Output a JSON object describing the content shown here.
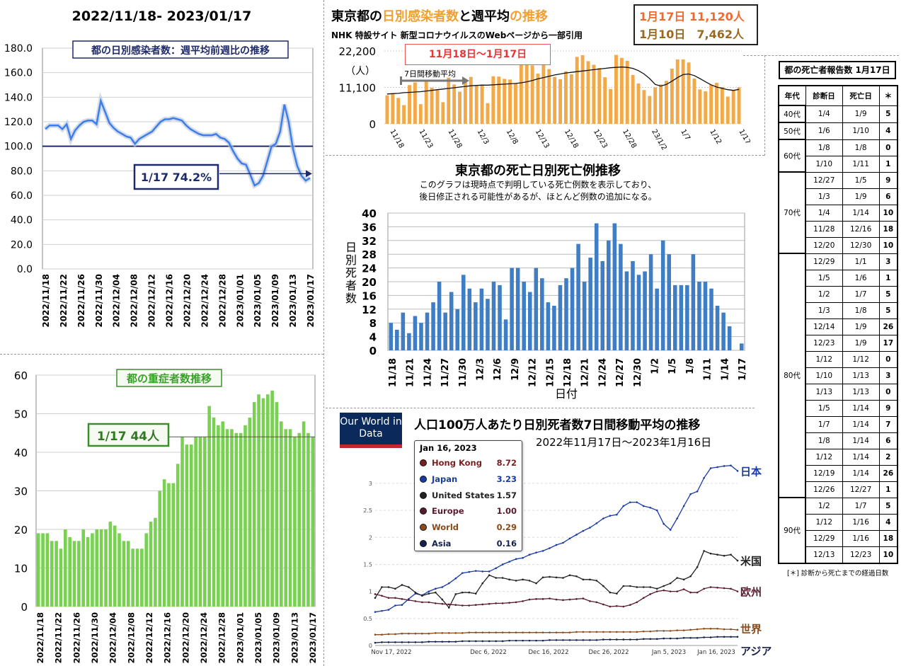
{
  "chart_data": [
    {
      "id": "ratio",
      "type": "line",
      "title": "2022/11/18- 2023/01/17",
      "subtitle": "都の日別感染者数：週平均前週比の推移",
      "annotation": "1/17 74.2%",
      "ylim": [
        0,
        180
      ],
      "yticks": [
        "0.0",
        "20.0",
        "40.0",
        "60.0",
        "80.0",
        "100.0",
        "120.0",
        "140.0",
        "160.0",
        "180.0"
      ],
      "reference_line": 100,
      "x_labels": [
        "2022/11/18",
        "2022/11/22",
        "2022/11/26",
        "2022/11/30",
        "2022/12/04",
        "2022/12/08",
        "2022/12/12",
        "2022/12/16",
        "2022/12/20",
        "2022/12/24",
        "2022/12/28",
        "2023/01/01",
        "2023/01/05",
        "2023/01/09",
        "2023/01/13",
        "2023/01/17"
      ],
      "series": [
        {
          "values": [
            114,
            117,
            117,
            117,
            114,
            118,
            106,
            113,
            117,
            120,
            121,
            121,
            118,
            137,
            128,
            119,
            115,
            112,
            110,
            108,
            107,
            102,
            106,
            108,
            110,
            112,
            116,
            120,
            122,
            122,
            123,
            122,
            121,
            117,
            114,
            112,
            110,
            109,
            109,
            109,
            110,
            107,
            106,
            103,
            96,
            90,
            86,
            85,
            77,
            68,
            70,
            76,
            88,
            100,
            102,
            112,
            134,
            120,
            98,
            84,
            76,
            72,
            74.2
          ]
        }
      ]
    },
    {
      "id": "daily",
      "type": "bar",
      "title": "東京都の日別感染者数と週平均の推移",
      "source": "NHK 特設サイト 新型コロナウイルスのWebページから一部引用",
      "period": "11月18日〜1月17日",
      "ma_label": "7日間移動平均",
      "ylabel": "（人）",
      "ylim": [
        0,
        22200
      ],
      "yticks": [
        "0",
        "11,100",
        "22,200"
      ],
      "callout": {
        "line1": "1月17日 11,120人",
        "line2": "1月10日　7,462人"
      },
      "x_labels": [
        "11/18",
        "11/23",
        "11/28",
        "12/3",
        "12/8",
        "12/13",
        "12/18",
        "12/23",
        "12/28",
        "23/1/2",
        "1/7",
        "1/12",
        "1/17"
      ],
      "bars": [
        8700,
        9300,
        7900,
        5700,
        11800,
        12600,
        6000,
        13400,
        11000,
        10300,
        6600,
        14100,
        12000,
        9800,
        13600,
        14300,
        11600,
        12000,
        6300,
        14500,
        14400,
        13700,
        13500,
        12300,
        18000,
        18800,
        17800,
        15300,
        18000,
        16700,
        14300,
        13600,
        16000,
        15100,
        20400,
        20900,
        19100,
        18000,
        17000,
        14200,
        10600,
        21000,
        20100,
        19200,
        14900,
        12300,
        10300,
        8500,
        11100,
        12000,
        13100,
        16800,
        19600,
        19600,
        18700,
        13800,
        10500,
        9900,
        11900,
        12500,
        11200,
        8300,
        10300,
        11120
      ],
      "ma": [
        9100,
        9200,
        9300,
        9500,
        9600,
        9700,
        9800,
        10000,
        10200,
        10400,
        10600,
        10800,
        11000,
        11200,
        11400,
        11600,
        11700,
        11800,
        11800,
        11900,
        12000,
        12100,
        12200,
        12300,
        12500,
        12800,
        13200,
        13700,
        14100,
        14500,
        14900,
        15200,
        15500,
        15700,
        15900,
        16100,
        16300,
        16500,
        16700,
        16900,
        17100,
        17200,
        17300,
        17200,
        16900,
        16200,
        15200,
        13800,
        12000,
        11500,
        12000,
        13000,
        14100,
        15000,
        15200,
        14700,
        13800,
        12800,
        11900,
        11200,
        10800,
        10400,
        10200,
        10500
      ]
    },
    {
      "id": "deaths",
      "type": "bar",
      "title": "東京都の死亡日別死亡例推移",
      "note": "このグラフは現時点で判明している死亡例数を表示しており、\n後日修正される可能性があるが、ほとんど例数の追加になる。",
      "ylabel": "日別死者数",
      "xlabel": "日付",
      "ylim": [
        0,
        40
      ],
      "yticks": [
        0,
        4,
        8,
        12,
        16,
        20,
        24,
        28,
        32,
        36,
        40
      ],
      "x_labels": [
        "11/18",
        "11/21",
        "11/24",
        "11/27",
        "11/30",
        "12/3",
        "12/6",
        "12/9",
        "12/12",
        "12/15",
        "12/18",
        "12/21",
        "12/24",
        "12/27",
        "12/30",
        "1/2",
        "1/5",
        "1/8",
        "1/11",
        "1/14",
        "1/17"
      ],
      "values": [
        8,
        6,
        11,
        5,
        10,
        8,
        11,
        14,
        20,
        11,
        17,
        12,
        22,
        18,
        14,
        18,
        15,
        20,
        19,
        9,
        24,
        24,
        20,
        17,
        24,
        21,
        14,
        13,
        19,
        21,
        24,
        31,
        20,
        27,
        37,
        26,
        32,
        37,
        31,
        23,
        26,
        22,
        23,
        28,
        18,
        32,
        28,
        19,
        19,
        19,
        28,
        20,
        20,
        18,
        13,
        11,
        7,
        0,
        2
      ]
    },
    {
      "id": "severe",
      "type": "bar",
      "title": "都の重症者数推移",
      "annotation": "1/17  44人",
      "ylim": [
        0,
        60
      ],
      "yticks": [
        0,
        10,
        20,
        30,
        40,
        50,
        60
      ],
      "x_labels": [
        "2022/11/18",
        "2022/11/22",
        "2022/11/26",
        "2022/11/30",
        "2022/12/04",
        "2022/12/08",
        "2022/12/12",
        "2022/12/16",
        "2022/12/20",
        "2022/12/24",
        "2022/12/28",
        "2023/01/01",
        "2023/01/05",
        "2023/01/09",
        "2023/01/13",
        "2023/01/17"
      ],
      "values": [
        19,
        19,
        19,
        17,
        17,
        15,
        20,
        18,
        17,
        17,
        20,
        18,
        19,
        20,
        20,
        20,
        22,
        21,
        19,
        17,
        17,
        15,
        15,
        15,
        19,
        22,
        23,
        30,
        33,
        32,
        32,
        37,
        44,
        42,
        42,
        44,
        44,
        44,
        52,
        49,
        47,
        48,
        46,
        46,
        45,
        45,
        47,
        49,
        53,
        55,
        54,
        55,
        56,
        53,
        48,
        46,
        46,
        44,
        45,
        48,
        45,
        44
      ]
    },
    {
      "id": "owid",
      "type": "line",
      "brand": "Our World in Data",
      "title": "人口100万人あたり日別死者数7日間移動平均の推移",
      "subtitle": "2022年11月17日〜2023年1月16日",
      "ylim": [
        0,
        3.3
      ],
      "yticks": [
        "0",
        "0.5",
        "1",
        "1.5",
        "2",
        "2.5",
        "3"
      ],
      "x_labels": [
        "Nov 17, 2022",
        "Dec 6, 2022",
        "Dec 16, 2022",
        "Dec 26, 2022",
        "Jan 5, 2023",
        "Jan 16, 2023"
      ],
      "tooltip_date": "Jan 16, 2023",
      "legend": [
        {
          "name": "Hong Kong",
          "value": "8.72",
          "color": "#7a1f1f"
        },
        {
          "name": "Japan",
          "value": "3.23",
          "color": "#1a3aa8"
        },
        {
          "name": "United States",
          "value": "1.57",
          "color": "#222222"
        },
        {
          "name": "Europe",
          "value": "1.00",
          "color": "#5a1a2e"
        },
        {
          "name": "World",
          "value": "0.29",
          "color": "#8a4a1a"
        },
        {
          "name": "Asia",
          "value": "0.16",
          "color": "#14214d"
        }
      ],
      "series": [
        {
          "name": "日本",
          "color": "#1a3aa8",
          "values": [
            0.62,
            0.64,
            0.66,
            0.74,
            0.75,
            0.86,
            0.96,
            0.93,
            1.0,
            1.05,
            1.08,
            1.15,
            1.24,
            1.34,
            1.36,
            1.38,
            1.37,
            1.37,
            1.43,
            1.5,
            1.55,
            1.6,
            1.62,
            1.68,
            1.72,
            1.75,
            1.8,
            1.86,
            1.9,
            1.98,
            2.05,
            2.12,
            2.18,
            2.26,
            2.35,
            2.4,
            2.42,
            2.58,
            2.65,
            2.65,
            2.58,
            2.55,
            2.5,
            2.25,
            2.14,
            2.35,
            2.58,
            2.8,
            2.85,
            3.1,
            3.28,
            3.3,
            3.32,
            3.33,
            3.23
          ]
        },
        {
          "name": "米国",
          "color": "#222222",
          "values": [
            0.88,
            1.08,
            1.08,
            1.05,
            1.12,
            1.08,
            0.98,
            0.92,
            0.96,
            0.98,
            0.85,
            0.7,
            0.95,
            0.98,
            0.98,
            0.96,
            1.15,
            1.3,
            1.25,
            1.25,
            1.22,
            1.2,
            1.22,
            1.2,
            1.15,
            1.26,
            1.27,
            1.26,
            1.25,
            1.3,
            1.28,
            1.22,
            1.22,
            1.2,
            1.1,
            0.98,
            0.96,
            1.1,
            1.1,
            1.08,
            1.08,
            1.08,
            1.05,
            1.1,
            1.15,
            1.25,
            1.22,
            1.28,
            1.45,
            1.75,
            1.7,
            1.68,
            1.66,
            1.68,
            1.57
          ]
        },
        {
          "name": "欧州",
          "color": "#5a1a2e",
          "values": [
            0.95,
            0.92,
            0.88,
            0.88,
            0.86,
            0.84,
            0.82,
            0.8,
            0.8,
            0.78,
            0.77,
            0.76,
            0.75,
            0.74,
            0.74,
            0.75,
            0.76,
            0.77,
            0.78,
            0.78,
            0.79,
            0.8,
            0.82,
            0.85,
            0.86,
            0.86,
            0.87,
            0.85,
            0.84,
            0.85,
            0.86,
            0.87,
            0.82,
            0.8,
            0.76,
            0.72,
            0.73,
            0.72,
            0.75,
            0.8,
            0.88,
            0.95,
            1.0,
            1.02,
            1.0,
            1.0,
            1.04,
            0.98,
            0.98,
            1.05,
            1.08,
            1.07,
            1.06,
            1.05,
            1.0
          ]
        },
        {
          "name": "世界",
          "color": "#8a4a1a",
          "values": [
            0.2,
            0.2,
            0.21,
            0.21,
            0.22,
            0.22,
            0.22,
            0.22,
            0.22,
            0.23,
            0.23,
            0.23,
            0.23,
            0.23,
            0.24,
            0.24,
            0.24,
            0.24,
            0.24,
            0.24,
            0.24,
            0.24,
            0.24,
            0.24,
            0.24,
            0.24,
            0.24,
            0.24,
            0.24,
            0.24,
            0.25,
            0.25,
            0.25,
            0.25,
            0.25,
            0.25,
            0.25,
            0.25,
            0.25,
            0.25,
            0.26,
            0.26,
            0.27,
            0.27,
            0.27,
            0.28,
            0.28,
            0.29,
            0.3,
            0.31,
            0.31,
            0.31,
            0.3,
            0.3,
            0.29
          ]
        },
        {
          "name": "アジア",
          "color": "#14214d",
          "values": [
            0.05,
            0.06,
            0.06,
            0.06,
            0.06,
            0.06,
            0.06,
            0.06,
            0.07,
            0.07,
            0.07,
            0.07,
            0.07,
            0.08,
            0.08,
            0.08,
            0.08,
            0.08,
            0.08,
            0.08,
            0.09,
            0.09,
            0.09,
            0.09,
            0.09,
            0.09,
            0.1,
            0.1,
            0.1,
            0.1,
            0.1,
            0.1,
            0.1,
            0.1,
            0.11,
            0.11,
            0.11,
            0.11,
            0.11,
            0.11,
            0.12,
            0.12,
            0.12,
            0.13,
            0.13,
            0.13,
            0.14,
            0.14,
            0.14,
            0.15,
            0.15,
            0.16,
            0.16,
            0.16,
            0.16
          ]
        }
      ]
    }
  ],
  "death_table": {
    "title": "都の死亡者報告数 1月17日",
    "headers": [
      "年代",
      "診断日",
      "死亡日",
      "＊"
    ],
    "groups": [
      {
        "age": "40代",
        "rows": [
          [
            "1/4",
            "1/9",
            "5"
          ]
        ]
      },
      {
        "age": "50代",
        "rows": [
          [
            "1/6",
            "1/10",
            "4"
          ]
        ]
      },
      {
        "age": "60代",
        "rows": [
          [
            "1/8",
            "1/8",
            "0"
          ],
          [
            "1/10",
            "1/11",
            "1"
          ]
        ]
      },
      {
        "age": "70代",
        "rows": [
          [
            "12/27",
            "1/5",
            "9"
          ],
          [
            "1/3",
            "1/9",
            "6"
          ],
          [
            "1/4",
            "1/14",
            "10"
          ],
          [
            "11/28",
            "12/16",
            "18"
          ],
          [
            "12/20",
            "12/30",
            "10"
          ]
        ]
      },
      {
        "age": "80代",
        "rows": [
          [
            "12/29",
            "1/1",
            "3"
          ],
          [
            "1/5",
            "1/6",
            "1"
          ],
          [
            "1/2",
            "1/7",
            "5"
          ],
          [
            "1/3",
            "1/8",
            "5"
          ],
          [
            "12/14",
            "1/9",
            "26"
          ],
          [
            "12/23",
            "1/9",
            "17"
          ],
          [
            "1/12",
            "1/12",
            "0"
          ],
          [
            "1/10",
            "1/13",
            "3"
          ],
          [
            "1/13",
            "1/13",
            "0"
          ],
          [
            "1/5",
            "1/14",
            "9"
          ],
          [
            "1/7",
            "1/14",
            "7"
          ],
          [
            "1/8",
            "1/14",
            "6"
          ],
          [
            "1/12",
            "1/14",
            "2"
          ],
          [
            "12/19",
            "1/14",
            "26"
          ],
          [
            "12/26",
            "12/27",
            "1"
          ]
        ]
      },
      {
        "age": "90代",
        "rows": [
          [
            "1/2",
            "1/7",
            "5"
          ],
          [
            "1/12",
            "1/16",
            "4"
          ],
          [
            "12/29",
            "1/16",
            "18"
          ],
          [
            "12/13",
            "12/23",
            "10"
          ]
        ]
      }
    ],
    "footnote": "[＊] 診断から死亡までの経過日数"
  }
}
